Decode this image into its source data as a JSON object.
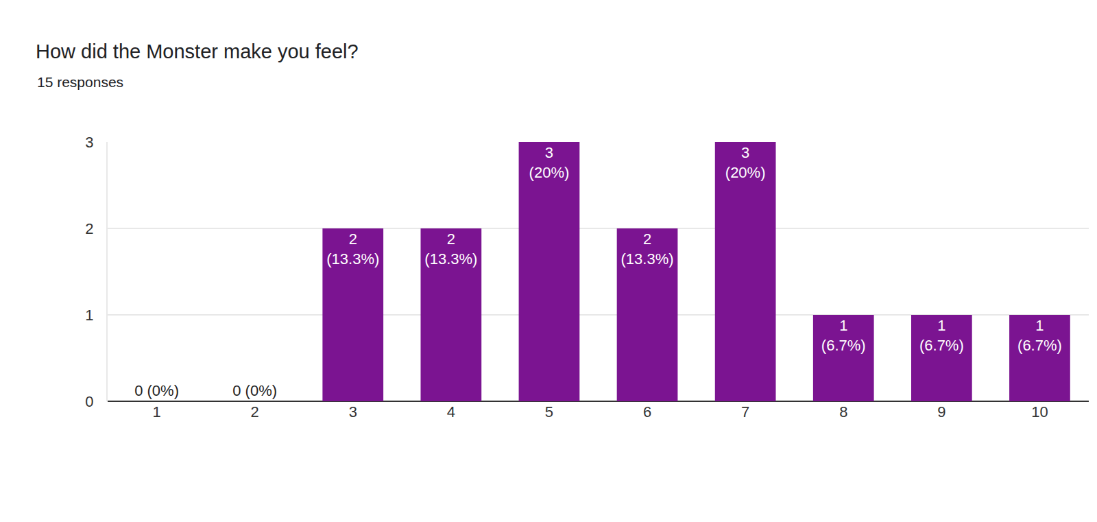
{
  "chart_data": {
    "type": "bar",
    "title": "How did the Monster make you feel?",
    "subtitle": "15 responses",
    "categories": [
      "1",
      "2",
      "3",
      "4",
      "5",
      "6",
      "7",
      "8",
      "9",
      "10"
    ],
    "values": [
      0,
      0,
      2,
      2,
      3,
      2,
      3,
      1,
      1,
      1
    ],
    "value_labels": [
      "0 (0%)",
      "0 (0%)",
      "2 (13.3%)",
      "2 (13.3%)",
      "3 (20%)",
      "2 (13.3%)",
      "3 (20%)",
      "1 (6.7%)",
      "1 (6.7%)",
      "1 (6.7%)"
    ],
    "color": "#7b1491",
    "ylim": [
      0,
      3
    ],
    "yticks": [
      0,
      1,
      2,
      3
    ],
    "grid": true,
    "data_labels": true
  }
}
